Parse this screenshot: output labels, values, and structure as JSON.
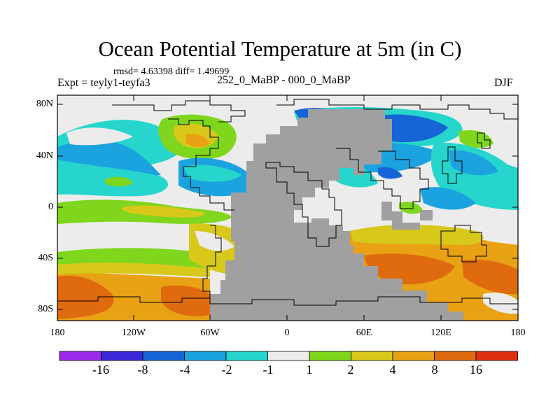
{
  "title": "Ocean Potential Temperature at 5m (in C)",
  "stats": "rmsd= 4.63398 diff= 1.49699",
  "subtitle_left": "Expt = teyly1-teyfa3",
  "subtitle_center": "252_0_MaBP - 000_0_MaBP",
  "subtitle_right": "DJF",
  "map": {
    "projection": "cylindrical-equidistant",
    "lon_range": [
      -180,
      180
    ],
    "lat_range": [
      -90,
      90
    ],
    "x_ticks": [
      {
        "lon": -180,
        "label": "180"
      },
      {
        "lon": -120,
        "label": "120W"
      },
      {
        "lon": -60,
        "label": "60W"
      },
      {
        "lon": 0,
        "label": "0"
      },
      {
        "lon": 60,
        "label": "60E"
      },
      {
        "lon": 120,
        "label": "120E"
      },
      {
        "lon": 180,
        "label": "180"
      }
    ],
    "y_ticks": [
      {
        "lat": 80,
        "label": "80N"
      },
      {
        "lat": 40,
        "label": "40N"
      },
      {
        "lat": 0,
        "label": "0"
      },
      {
        "lat": -40,
        "label": "40S"
      },
      {
        "lat": -80,
        "label": "80S"
      }
    ]
  },
  "colorbar": {
    "colors": [
      "#9b2be8",
      "#3b28d8",
      "#1565d6",
      "#1ba3e0",
      "#26d6cc",
      "#ececec",
      "#7fd61c",
      "#d7c81a",
      "#e8a214",
      "#e06a0e",
      "#e03010"
    ],
    "labels": [
      "-16",
      "-8",
      "-4",
      "-2",
      "-1",
      "1",
      "2",
      "4",
      "8",
      "16"
    ]
  },
  "colors": {
    "land": "#a0a0a0",
    "coastline": "#000000",
    "frame": "#000000"
  }
}
